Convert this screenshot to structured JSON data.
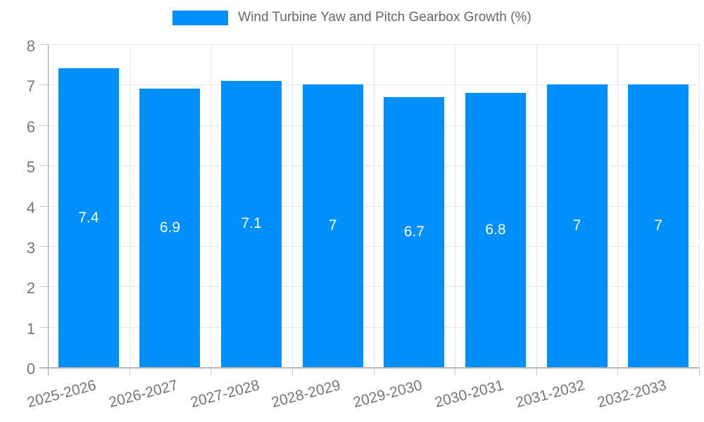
{
  "chart_data": {
    "type": "bar",
    "title": "Wind Turbine Yaw and Pitch Gearbox Growth (%)",
    "categories": [
      "2025-2026",
      "2026-2027",
      "2027-2028",
      "2028-2029",
      "2029-2030",
      "2030-2031",
      "2031-2032",
      "2032-2033"
    ],
    "series": [
      {
        "name": "Wind Turbine Yaw and Pitch Gearbox Growth (%)",
        "values": [
          7.4,
          6.9,
          7.1,
          7,
          6.7,
          6.8,
          7,
          7
        ]
      }
    ],
    "value_labels": [
      "7.4",
      "6.9",
      "7.1",
      "7",
      "6.7",
      "6.8",
      "7",
      "7"
    ],
    "xlabel": "",
    "ylabel": "",
    "ylim": [
      0,
      8
    ],
    "yticks": [
      0,
      1,
      2,
      3,
      4,
      5,
      6,
      7,
      8
    ],
    "grid": "horizontal and vertical",
    "legend_position": "top",
    "colors": {
      "bar": "#008FFB",
      "grid": "#e6e6e6",
      "y_axis_line": "#999999",
      "x_axis_line": "#b6b6b6",
      "tick_label": "#757575",
      "title_text": "#666666",
      "value_label": "#ffffff",
      "background": "#ffffff"
    }
  }
}
